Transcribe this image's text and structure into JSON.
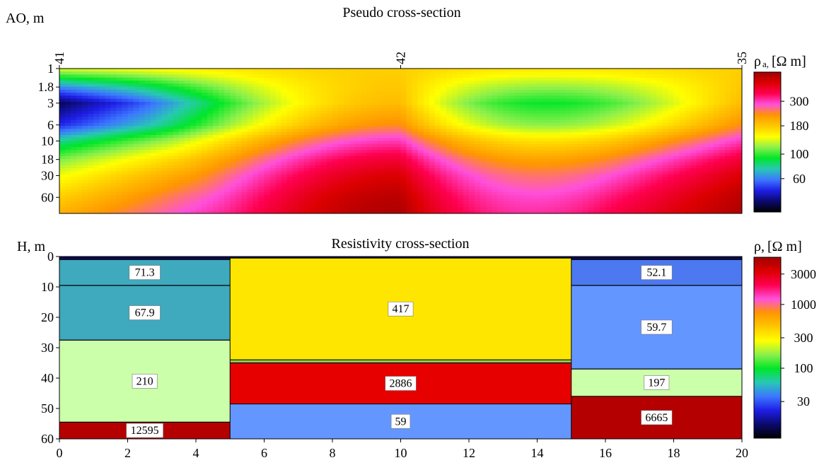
{
  "chart_data": [
    {
      "type": "heatmap",
      "title": "Pseudo cross-section",
      "ylabel": "AO, m",
      "x_range": [
        0,
        20
      ],
      "stations": [
        {
          "label": "41",
          "x": 0
        },
        {
          "label": "42",
          "x": 10
        },
        {
          "label": "35",
          "x": 20
        }
      ],
      "y_scale": "log",
      "y_ticks": [
        "1",
        "1.8",
        "3",
        "6",
        "10",
        "18",
        "30",
        "60"
      ],
      "y_range": [
        1,
        100
      ],
      "colorbar": {
        "label_main": "ρ",
        "label_sub": "a,",
        "label_unit": "[Ω m]",
        "scale": "log",
        "range": [
          30,
          550
        ],
        "ticks": [
          "300",
          "180",
          "100",
          "60"
        ]
      },
      "colormap": [
        "#000000",
        "#0a0a6e",
        "#1e1ee6",
        "#3c78ff",
        "#28c8b4",
        "#00e628",
        "#8cf04b",
        "#ffff00",
        "#ffc800",
        "#ff9600",
        "#ff50dc",
        "#ff0050",
        "#dc0000",
        "#a00000"
      ]
    },
    {
      "type": "table",
      "title": "Resistivity cross-section",
      "ylabel": "H, m",
      "xlim": [
        0,
        20
      ],
      "ylim": [
        0,
        60
      ],
      "x_ticks": [
        "0",
        "2",
        "4",
        "6",
        "8",
        "10",
        "12",
        "14",
        "16",
        "18",
        "20"
      ],
      "y_ticks": [
        "0",
        "10",
        "20",
        "30",
        "40",
        "50",
        "60"
      ],
      "colorbar": {
        "label_main": "ρ,",
        "label_unit": "[Ω m]",
        "scale": "log",
        "range": [
          8,
          5500
        ],
        "ticks": [
          "3000",
          "1000",
          "300",
          "100",
          "30"
        ]
      },
      "columns": [
        {
          "x0": 0,
          "x1": 5,
          "layers": [
            {
              "top": 0,
              "bottom": 1,
              "value": "",
              "color": "#0a0a50"
            },
            {
              "top": 1,
              "bottom": 9.5,
              "value": "71.3",
              "color": "#3fa9bd"
            },
            {
              "top": 9.5,
              "bottom": 27.5,
              "value": "67.9",
              "color": "#3fa9bd"
            },
            {
              "top": 27.5,
              "bottom": 54.5,
              "value": "210",
              "color": "#ccffaa"
            },
            {
              "top": 54.5,
              "bottom": 61,
              "value": "12595",
              "color": "#b40000"
            }
          ]
        },
        {
          "x0": 5,
          "x1": 15,
          "layers": [
            {
              "top": 0,
              "bottom": 0.5,
              "value": "",
              "color": "#0a0a50"
            },
            {
              "top": 0.5,
              "bottom": 34,
              "value": "417",
              "color": "#ffe600"
            },
            {
              "top": 34,
              "bottom": 35,
              "value": "",
              "color": "#90d45a"
            },
            {
              "top": 35,
              "bottom": 48.5,
              "value": "2886",
              "color": "#e60000"
            },
            {
              "top": 48.5,
              "bottom": 61,
              "value": "59",
              "color": "#6496ff"
            }
          ]
        },
        {
          "x0": 15,
          "x1": 20,
          "layers": [
            {
              "top": 0,
              "bottom": 1,
              "value": "",
              "color": "#0a0a50"
            },
            {
              "top": 1,
              "bottom": 9.5,
              "value": "52.1",
              "color": "#4c78f0"
            },
            {
              "top": 9.5,
              "bottom": 37,
              "value": "59.7",
              "color": "#6496ff"
            },
            {
              "top": 37,
              "bottom": 46,
              "value": "197",
              "color": "#ccffaa"
            },
            {
              "top": 46,
              "bottom": 61,
              "value": "6665",
              "color": "#b40000"
            }
          ]
        }
      ],
      "colormap": [
        "#000000",
        "#0a0a6e",
        "#1e1ee6",
        "#3c78ff",
        "#28c8b4",
        "#00e628",
        "#8cf04b",
        "#ffff00",
        "#ffc800",
        "#ff9600",
        "#ff50dc",
        "#ff0050",
        "#dc0000",
        "#a00000"
      ]
    }
  ]
}
